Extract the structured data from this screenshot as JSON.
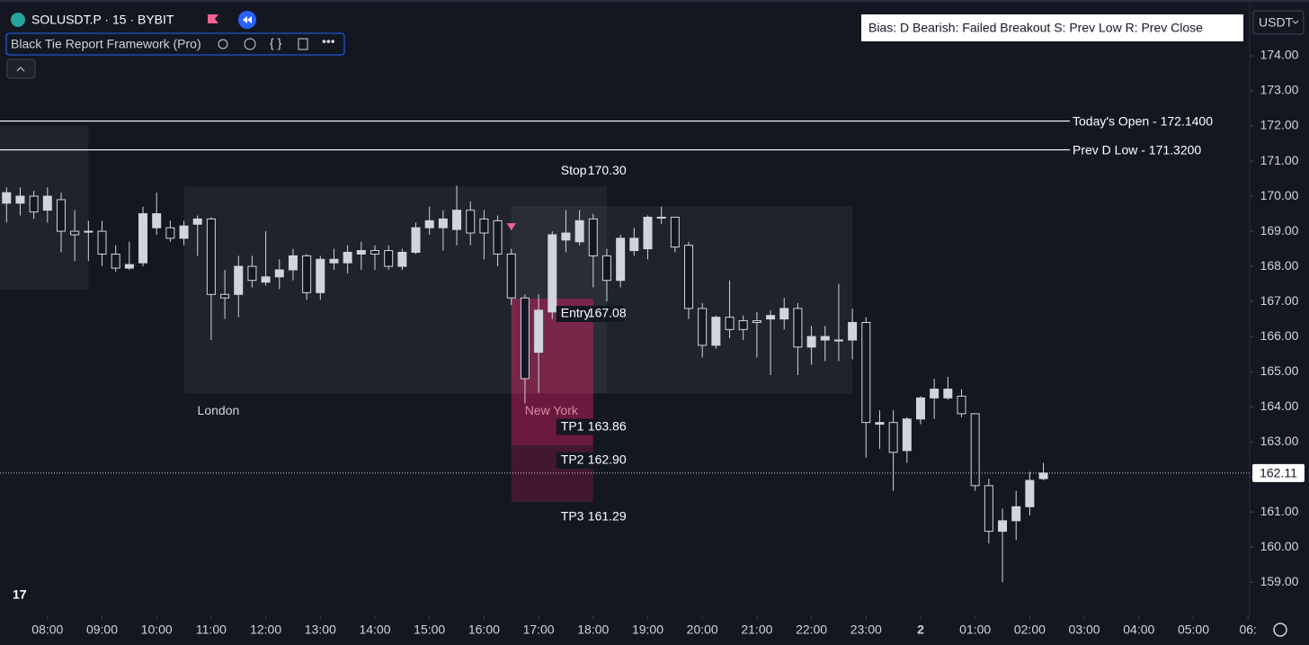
{
  "chart_data": {
    "type": "candlestick",
    "symbol": "SOLUSDT.P · 15 · BYBIT",
    "indicator": "Black Tie Report Framework (Pro)",
    "info": "Bias: D  Bearish: Failed Breakout  S: Prev Low  R: Prev Close",
    "currency": "USDT",
    "bull_color": "#d1d4dc",
    "bear_color": "#131722",
    "x": [
      7.25,
      7.5,
      7.75,
      8,
      8.25,
      8.5,
      8.75,
      9,
      9.25,
      9.5,
      9.75,
      10,
      10.25,
      10.5,
      10.75,
      11,
      11.25,
      11.5,
      11.75,
      12,
      12.25,
      12.5,
      12.75,
      13,
      13.25,
      13.5,
      13.75,
      14,
      14.25,
      14.5,
      14.75,
      15,
      15.25,
      15.5,
      15.75,
      16,
      16.25,
      16.5,
      16.75,
      17,
      17.25,
      17.5,
      17.75,
      18,
      18.25,
      18.5,
      18.75,
      19,
      19.25,
      19.5,
      19.75,
      20,
      20.25,
      20.5,
      20.75,
      21,
      21.25,
      21.5,
      21.75,
      22,
      22.25,
      22.5,
      22.75,
      23,
      23.25,
      23.5,
      23.75,
      24,
      24.25,
      24.5,
      24.75,
      25,
      25.25,
      25.5,
      25.75,
      26,
      26.25
    ],
    "open": [
      169.8,
      169.8,
      170.0,
      169.6,
      169.9,
      169.0,
      169.0,
      169.0,
      168.35,
      167.95,
      168.1,
      169.1,
      169.1,
      168.8,
      169.2,
      169.35,
      167.2,
      167.2,
      168.0,
      167.55,
      167.7,
      167.9,
      168.3,
      167.25,
      168.1,
      168.1,
      168.35,
      168.45,
      168.45,
      168.0,
      168.4,
      169.1,
      169.1,
      169.05,
      169.6,
      169.35,
      169.3,
      168.35,
      167.1,
      165.55,
      166.7,
      168.75,
      168.7,
      169.35,
      168.3,
      167.6,
      168.45,
      168.5,
      169.4,
      169.4,
      168.6,
      166.8,
      165.75,
      166.55,
      166.45,
      166.45,
      166.5,
      166.5,
      166.8,
      165.7,
      165.9,
      165.9,
      165.9,
      166.4,
      163.5,
      163.55,
      162.75,
      163.65,
      164.25,
      164.25,
      164.3,
      163.8,
      161.75,
      160.45,
      160.75,
      161.15,
      161.95
    ],
    "high": [
      170.25,
      170.25,
      170.15,
      170.25,
      170.1,
      169.6,
      169.3,
      169.3,
      168.6,
      168.7,
      169.7,
      170.1,
      169.3,
      169.3,
      169.45,
      169.4,
      167.9,
      168.3,
      168.3,
      169.0,
      168.2,
      168.5,
      168.35,
      168.3,
      168.5,
      168.6,
      168.7,
      168.6,
      168.6,
      168.5,
      169.25,
      169.7,
      169.6,
      170.3,
      169.85,
      169.6,
      169.45,
      168.5,
      167.2,
      167.2,
      169.0,
      169.6,
      169.6,
      169.5,
      168.5,
      168.9,
      169.1,
      169.45,
      169.7,
      169.4,
      168.7,
      166.95,
      166.6,
      167.6,
      166.6,
      166.7,
      166.75,
      167.1,
      166.95,
      166.3,
      166.3,
      167.5,
      166.8,
      166.55,
      163.9,
      163.9,
      163.7,
      164.3,
      164.8,
      164.85,
      164.5,
      163.8,
      161.95,
      161.1,
      161.6,
      162.15,
      162.4
    ],
    "low": [
      169.25,
      169.45,
      169.35,
      169.25,
      168.4,
      168.15,
      168.15,
      168.0,
      167.85,
      167.9,
      168.0,
      168.9,
      168.7,
      168.6,
      168.3,
      165.9,
      166.5,
      166.55,
      167.4,
      167.45,
      167.35,
      167.6,
      167.05,
      167.05,
      167.9,
      167.8,
      167.9,
      167.9,
      167.9,
      167.9,
      168.35,
      168.9,
      168.45,
      168.6,
      168.6,
      168.2,
      168.0,
      166.9,
      164.1,
      164.4,
      166.5,
      168.4,
      168.6,
      167.4,
      167.0,
      167.4,
      168.3,
      168.2,
      169.2,
      168.4,
      166.5,
      165.4,
      165.65,
      165.95,
      165.9,
      165.4,
      164.9,
      166.2,
      164.9,
      165.2,
      165.3,
      165.3,
      165.35,
      162.55,
      162.8,
      161.6,
      162.4,
      163.5,
      163.65,
      164.2,
      163.7,
      161.6,
      160.1,
      159.0,
      160.2,
      160.9,
      161.9
    ],
    "close": [
      170.1,
      170.0,
      169.55,
      170.0,
      169.0,
      168.9,
      168.98,
      168.35,
      167.95,
      168.05,
      169.5,
      169.5,
      168.8,
      169.15,
      169.35,
      167.2,
      167.1,
      168.0,
      167.6,
      167.7,
      167.9,
      168.3,
      167.25,
      168.2,
      168.2,
      168.4,
      168.45,
      168.35,
      168.0,
      168.4,
      169.1,
      169.3,
      169.35,
      169.6,
      168.95,
      168.95,
      168.35,
      167.1,
      164.8,
      166.75,
      168.9,
      168.95,
      169.3,
      168.3,
      167.6,
      168.8,
      168.8,
      169.4,
      169.4,
      168.55,
      166.8,
      165.75,
      166.55,
      166.2,
      166.2,
      166.4,
      166.6,
      166.8,
      165.7,
      166.0,
      166.0,
      165.9,
      166.4,
      163.55,
      163.55,
      162.7,
      163.65,
      164.25,
      164.5,
      164.5,
      163.8,
      161.75,
      160.45,
      160.75,
      161.15,
      161.9,
      162.11
    ],
    "xlim": [
      7.13,
      30.03
    ],
    "ylim": [
      158.03,
      175.59
    ],
    "xticks": [
      {
        "value": 8,
        "label": "08:00"
      },
      {
        "value": 9,
        "label": "09:00"
      },
      {
        "value": 10,
        "label": "10:00"
      },
      {
        "value": 11,
        "label": "11:00"
      },
      {
        "value": 12,
        "label": "12:00"
      },
      {
        "value": 13,
        "label": "13:00"
      },
      {
        "value": 14,
        "label": "14:00"
      },
      {
        "value": 15,
        "label": "15:00"
      },
      {
        "value": 16,
        "label": "16:00"
      },
      {
        "value": 17,
        "label": "17:00"
      },
      {
        "value": 18,
        "label": "18:00"
      },
      {
        "value": 19,
        "label": "19:00"
      },
      {
        "value": 20,
        "label": "20:00"
      },
      {
        "value": 21,
        "label": "21:00"
      },
      {
        "value": 22,
        "label": "22:00"
      },
      {
        "value": 23,
        "label": "23:00"
      },
      {
        "value": 24,
        "label": "2"
      },
      {
        "value": 25,
        "label": "01:00"
      },
      {
        "value": 26,
        "label": "02:00"
      },
      {
        "value": 27,
        "label": "03:00"
      },
      {
        "value": 28,
        "label": "04:00"
      },
      {
        "value": 29,
        "label": "05:00"
      },
      {
        "value": 30,
        "label": "06:"
      }
    ],
    "yticks": [
      {
        "value": 159,
        "label": "159.00"
      },
      {
        "value": 160,
        "label": "160.00"
      },
      {
        "value": 161,
        "label": "161.00"
      },
      {
        "value": 162,
        "label": "162.00"
      },
      {
        "value": 163,
        "label": "163.00"
      },
      {
        "value": 164,
        "label": "164.00"
      },
      {
        "value": 165,
        "label": "165.00"
      },
      {
        "value": 166,
        "label": "166.00"
      },
      {
        "value": 167,
        "label": "167.00"
      },
      {
        "value": 168,
        "label": "168.00"
      },
      {
        "value": 169,
        "label": "169.00"
      },
      {
        "value": 170,
        "label": "170.00"
      },
      {
        "value": 171,
        "label": "171.00"
      },
      {
        "value": 172,
        "label": "172.00"
      },
      {
        "value": 173,
        "label": "173.00"
      },
      {
        "value": 174,
        "label": "174.00"
      }
    ],
    "levels": [
      {
        "label": "Today's Open - 172.1400",
        "value": 172.14
      },
      {
        "label": "Prev D Low  - 171.3200",
        "value": 171.32
      }
    ],
    "sessions": [
      {
        "start": 7.13,
        "end": 8.75,
        "high": 172.0,
        "low": 167.33
      },
      {
        "name": "London",
        "start": 10.5,
        "end": 18.25,
        "high": 170.28,
        "low": 164.38
      },
      {
        "name": "New York",
        "start": 16.5,
        "end": 22.75,
        "high": 169.72,
        "low": 164.38
      }
    ],
    "trade": {
      "start": 16.5,
      "end": 18.0,
      "levels": [
        {
          "name": "Stop",
          "value": {
            "value": 170.3,
            "label": "170.30"
          }
        },
        {
          "name": "Entry",
          "value": {
            "value": 167.08,
            "label": "167.08"
          }
        },
        {
          "name": "TP1",
          "value": {
            "value": 163.86,
            "label": "163.86"
          }
        },
        {
          "name": "TP2",
          "value": {
            "value": 162.9,
            "label": "162.90"
          }
        },
        {
          "name": "TP3",
          "value": {
            "value": 161.29,
            "label": "161.29"
          }
        }
      ]
    },
    "price_line": {
      "value": 162.11,
      "label": "162.11"
    }
  }
}
